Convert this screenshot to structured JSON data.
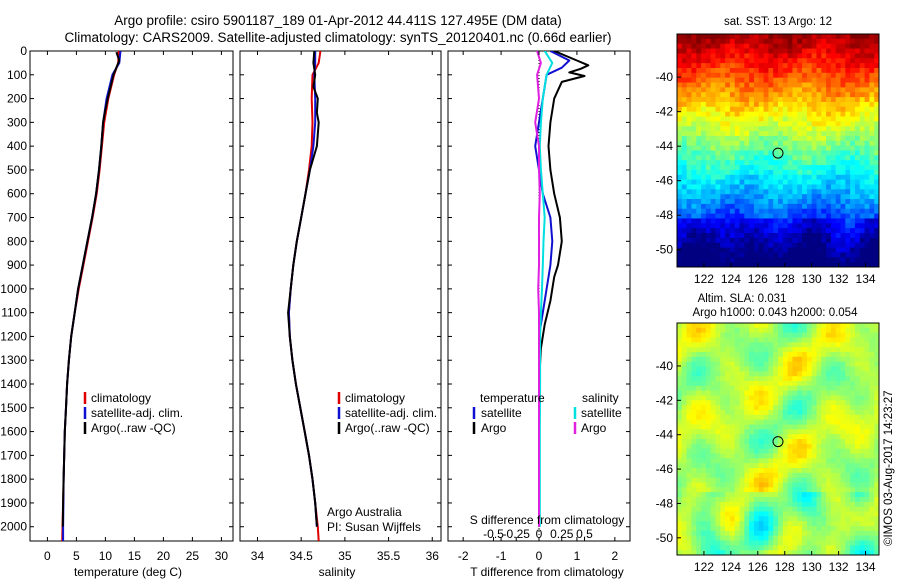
{
  "title": {
    "line1": "Argo profile: csiro 5901187_189 01-Apr-2012 44.411S 127.495E (DM data)",
    "line2": "Climatology: CARS2009. Satellite-adjusted climatology: synTS_20120401.nc (0.66d earlier)"
  },
  "colors": {
    "climatology": "#e00000",
    "satellite": "#1010d0",
    "argo": "#000000",
    "salinity_satellite": "#00e0e0",
    "salinity_argo": "#e020e0"
  },
  "chart_data": [
    {
      "type": "line",
      "name": "temperature-profile",
      "xlabel": "temperature (deg C)",
      "ylabel": "",
      "xlim": [
        -3,
        32
      ],
      "ylim": [
        2060,
        0
      ],
      "xticks": [
        0,
        5,
        10,
        15,
        20,
        25,
        30
      ],
      "yticks": [
        0,
        100,
        200,
        300,
        400,
        500,
        600,
        700,
        800,
        900,
        1000,
        1100,
        1200,
        1300,
        1400,
        1500,
        1600,
        1700,
        1800,
        1900,
        2000
      ],
      "legend": [
        "climatology",
        "satellite-adj. clim.",
        "Argo(..raw -QC)"
      ],
      "series": [
        {
          "name": "climatology",
          "color": "#e00000",
          "points": [
            [
              12.3,
              0
            ],
            [
              12.2,
              50
            ],
            [
              11.5,
              100
            ],
            [
              10.5,
              200
            ],
            [
              9.8,
              300
            ],
            [
              9.4,
              400
            ],
            [
              9.0,
              500
            ],
            [
              8.5,
              600
            ],
            [
              7.8,
              700
            ],
            [
              7.0,
              800
            ],
            [
              6.2,
              900
            ],
            [
              5.4,
              1000
            ],
            [
              4.7,
              1100
            ],
            [
              4.1,
              1200
            ],
            [
              3.7,
              1300
            ],
            [
              3.4,
              1400
            ],
            [
              3.2,
              1500
            ],
            [
              3.0,
              1600
            ],
            [
              2.9,
              1700
            ],
            [
              2.8,
              1800
            ],
            [
              2.7,
              1900
            ],
            [
              2.6,
              2000
            ],
            [
              2.55,
              2060
            ]
          ]
        },
        {
          "name": "satellite-adj. clim.",
          "color": "#1010d0",
          "points": [
            [
              12.6,
              0
            ],
            [
              12.4,
              50
            ],
            [
              11.2,
              100
            ],
            [
              10.2,
              200
            ],
            [
              9.6,
              300
            ],
            [
              9.3,
              400
            ],
            [
              8.9,
              500
            ],
            [
              8.4,
              600
            ],
            [
              7.7,
              700
            ],
            [
              6.9,
              800
            ],
            [
              6.1,
              900
            ],
            [
              5.3,
              1000
            ],
            [
              4.7,
              1100
            ],
            [
              4.1,
              1200
            ],
            [
              3.7,
              1300
            ],
            [
              3.4,
              1400
            ],
            [
              3.2,
              1500
            ],
            [
              3.0,
              1600
            ],
            [
              2.9,
              1700
            ],
            [
              2.8,
              1800
            ],
            [
              2.75,
              1900
            ],
            [
              2.7,
              2000
            ],
            [
              2.7,
              2060
            ]
          ]
        },
        {
          "name": "Argo(..raw -QC)",
          "color": "#000000",
          "points": [
            [
              11.9,
              5
            ],
            [
              12.4,
              40
            ],
            [
              11.4,
              100
            ],
            [
              10.9,
              150
            ],
            [
              10.4,
              200
            ],
            [
              9.9,
              260
            ],
            [
              9.6,
              300
            ],
            [
              9.3,
              400
            ],
            [
              8.9,
              500
            ],
            [
              8.4,
              600
            ],
            [
              7.7,
              700
            ],
            [
              6.9,
              800
            ],
            [
              6.1,
              900
            ],
            [
              5.3,
              1000
            ],
            [
              4.7,
              1100
            ],
            [
              4.1,
              1200
            ],
            [
              3.7,
              1300
            ],
            [
              3.4,
              1400
            ],
            [
              3.2,
              1500
            ],
            [
              3.0,
              1600
            ],
            [
              2.9,
              1700
            ],
            [
              2.8,
              1800
            ],
            [
              2.7,
              1900
            ],
            [
              2.65,
              2000
            ]
          ]
        }
      ]
    },
    {
      "type": "line",
      "name": "salinity-profile",
      "xlabel": "salinity",
      "xlim": [
        33.8,
        36.1
      ],
      "ylim": [
        2060,
        0
      ],
      "xticks": [
        34,
        34.5,
        35,
        35.5,
        36
      ],
      "legend": [
        "climatology",
        "satellite-adj. clim.",
        "Argo(..raw -QC)"
      ],
      "annotation": [
        "Argo Australia",
        "PI: Susan Wijffels"
      ],
      "series": [
        {
          "name": "climatology",
          "color": "#e00000",
          "points": [
            [
              34.72,
              0
            ],
            [
              34.7,
              50
            ],
            [
              34.63,
              100
            ],
            [
              34.62,
              200
            ],
            [
              34.63,
              300
            ],
            [
              34.62,
              400
            ],
            [
              34.59,
              500
            ],
            [
              34.55,
              600
            ],
            [
              34.5,
              700
            ],
            [
              34.45,
              800
            ],
            [
              34.41,
              900
            ],
            [
              34.38,
              1000
            ],
            [
              34.36,
              1100
            ],
            [
              34.37,
              1200
            ],
            [
              34.4,
              1300
            ],
            [
              34.44,
              1400
            ],
            [
              34.49,
              1500
            ],
            [
              34.54,
              1600
            ],
            [
              34.59,
              1700
            ],
            [
              34.63,
              1800
            ],
            [
              34.66,
              1900
            ],
            [
              34.69,
              2000
            ],
            [
              34.7,
              2060
            ]
          ]
        },
        {
          "name": "satellite-adj. clim.",
          "color": "#1010d0",
          "points": [
            [
              34.66,
              0
            ],
            [
              34.66,
              50
            ],
            [
              34.65,
              100
            ],
            [
              34.66,
              200
            ],
            [
              34.66,
              300
            ],
            [
              34.64,
              400
            ],
            [
              34.6,
              500
            ],
            [
              34.55,
              600
            ],
            [
              34.5,
              700
            ],
            [
              34.45,
              800
            ],
            [
              34.41,
              900
            ],
            [
              34.38,
              1000
            ],
            [
              34.36,
              1100
            ],
            [
              34.37,
              1200
            ],
            [
              34.4,
              1300
            ],
            [
              34.44,
              1400
            ],
            [
              34.49,
              1500
            ],
            [
              34.54,
              1600
            ],
            [
              34.59,
              1700
            ],
            [
              34.63,
              1800
            ],
            [
              34.66,
              1900
            ],
            [
              34.68,
              2000
            ]
          ]
        },
        {
          "name": "Argo(..raw -QC)",
          "color": "#000000",
          "points": [
            [
              34.65,
              0
            ],
            [
              34.64,
              50
            ],
            [
              34.66,
              100
            ],
            [
              34.64,
              150
            ],
            [
              34.69,
              200
            ],
            [
              34.68,
              260
            ],
            [
              34.7,
              300
            ],
            [
              34.68,
              400
            ],
            [
              34.6,
              500
            ],
            [
              34.55,
              600
            ],
            [
              34.5,
              700
            ],
            [
              34.45,
              800
            ],
            [
              34.41,
              900
            ],
            [
              34.38,
              1000
            ],
            [
              34.35,
              1100
            ],
            [
              34.37,
              1200
            ],
            [
              34.4,
              1300
            ],
            [
              34.44,
              1400
            ],
            [
              34.49,
              1500
            ],
            [
              34.54,
              1600
            ],
            [
              34.59,
              1700
            ],
            [
              34.63,
              1800
            ],
            [
              34.66,
              1900
            ],
            [
              34.68,
              2000
            ]
          ]
        }
      ]
    },
    {
      "type": "line",
      "name": "difference-profile",
      "xlabel": "T difference from climatology",
      "xlabel2": "S difference from climatology",
      "xlim": [
        -2.4,
        2.4
      ],
      "ylim": [
        2060,
        0
      ],
      "xticks": [
        -2,
        -1,
        0,
        1,
        2
      ],
      "xticks_labels": [
        "-2",
        "-1",
        "0",
        "1",
        "2"
      ],
      "sticks_top": [
        -0.5,
        -0.25,
        0,
        0.25,
        0.5
      ],
      "sticks_top_labels": [
        "-0.5",
        "-0.25",
        "0",
        "0.25",
        "0.5"
      ],
      "legend_temperature": {
        "heading": "temperature",
        "entries": [
          "satellite",
          "Argo"
        ]
      },
      "legend_salinity": {
        "heading": "salinity",
        "entries": [
          "satellite",
          "Argo"
        ]
      },
      "series": [
        {
          "name": "temperature satellite",
          "color": "#1010d0",
          "points": [
            [
              0.3,
              0
            ],
            [
              0.8,
              40
            ],
            [
              0.6,
              70
            ],
            [
              0.2,
              100
            ],
            [
              0.1,
              200
            ],
            [
              0.0,
              300
            ],
            [
              -0.1,
              400
            ],
            [
              0.0,
              500
            ],
            [
              0.1,
              600
            ],
            [
              0.3,
              700
            ],
            [
              0.35,
              800
            ],
            [
              0.3,
              900
            ],
            [
              0.2,
              1000
            ],
            [
              0.1,
              1100
            ],
            [
              0.0,
              1200
            ],
            [
              0.0,
              1400
            ],
            [
              0.0,
              1600
            ],
            [
              0.0,
              1800
            ],
            [
              0.0,
              2000
            ]
          ]
        },
        {
          "name": "temperature Argo",
          "color": "#000000",
          "points": [
            [
              0.4,
              0
            ],
            [
              1.0,
              40
            ],
            [
              1.3,
              60
            ],
            [
              1.1,
              75
            ],
            [
              0.8,
              90
            ],
            [
              1.2,
              105
            ],
            [
              0.6,
              130
            ],
            [
              0.4,
              200
            ],
            [
              0.3,
              300
            ],
            [
              0.25,
              400
            ],
            [
              0.3,
              500
            ],
            [
              0.4,
              600
            ],
            [
              0.55,
              700
            ],
            [
              0.6,
              800
            ],
            [
              0.5,
              900
            ],
            [
              0.4,
              950
            ],
            [
              0.3,
              1050
            ],
            [
              0.15,
              1150
            ],
            [
              0.05,
              1250
            ],
            [
              0.0,
              1400
            ],
            [
              0.0,
              1600
            ],
            [
              0.0,
              1800
            ],
            [
              0.0,
              2000
            ]
          ]
        },
        {
          "name": "salinity satellite",
          "color": "#00e0e0",
          "points": [
            [
              0.15,
              0
            ],
            [
              0.35,
              50
            ],
            [
              0.2,
              100
            ],
            [
              0.1,
              200
            ],
            [
              0.05,
              300
            ],
            [
              0.02,
              400
            ],
            [
              0.05,
              500
            ],
            [
              0.1,
              600
            ],
            [
              0.15,
              700
            ],
            [
              0.12,
              800
            ],
            [
              0.1,
              900
            ],
            [
              0.08,
              1000
            ],
            [
              0.05,
              1100
            ],
            [
              0.03,
              1200
            ],
            [
              0.03,
              1400
            ],
            [
              0.02,
              1600
            ],
            [
              0.02,
              1800
            ],
            [
              0.02,
              2000
            ]
          ]
        },
        {
          "name": "salinity Argo",
          "color": "#e020e0",
          "points": [
            [
              -0.05,
              0
            ],
            [
              0.05,
              50
            ],
            [
              -0.05,
              100
            ],
            [
              0.0,
              200
            ],
            [
              -0.1,
              300
            ],
            [
              0.0,
              400
            ],
            [
              0.0,
              500
            ],
            [
              0.02,
              600
            ],
            [
              0.0,
              700
            ],
            [
              0.0,
              800
            ],
            [
              0.0,
              900
            ],
            [
              -0.02,
              1000
            ],
            [
              0.0,
              1100
            ],
            [
              0.0,
              1200
            ],
            [
              0.0,
              1400
            ],
            [
              0.0,
              1600
            ],
            [
              0.0,
              1800
            ],
            [
              0.0,
              2000
            ]
          ]
        }
      ]
    },
    {
      "type": "heatmap",
      "name": "sst-map",
      "title": "sat. SST: 13 Argo: 12",
      "xlim": [
        120,
        135
      ],
      "ylim": [
        -51,
        -37.5
      ],
      "xticks": [
        122,
        124,
        126,
        128,
        130,
        132,
        134
      ],
      "yticks": [
        -40,
        -42,
        -44,
        -46,
        -48,
        -50
      ],
      "marker": {
        "lon": 127.5,
        "lat": -44.4
      }
    },
    {
      "type": "heatmap",
      "name": "sla-map",
      "title_line1": "Altim. SLA: 0.031",
      "title_line2": "Argo h1000: 0.043 h2000: 0.054",
      "xlim": [
        120,
        135
      ],
      "ylim": [
        -51,
        -37.5
      ],
      "xticks": [
        122,
        124,
        126,
        128,
        130,
        132,
        134
      ],
      "yticks": [
        -40,
        -42,
        -44,
        -46,
        -48,
        -50
      ],
      "marker": {
        "lon": 127.5,
        "lat": -44.4
      }
    }
  ],
  "watermark": "©IMOS 03-Aug-2017 14:23:27"
}
